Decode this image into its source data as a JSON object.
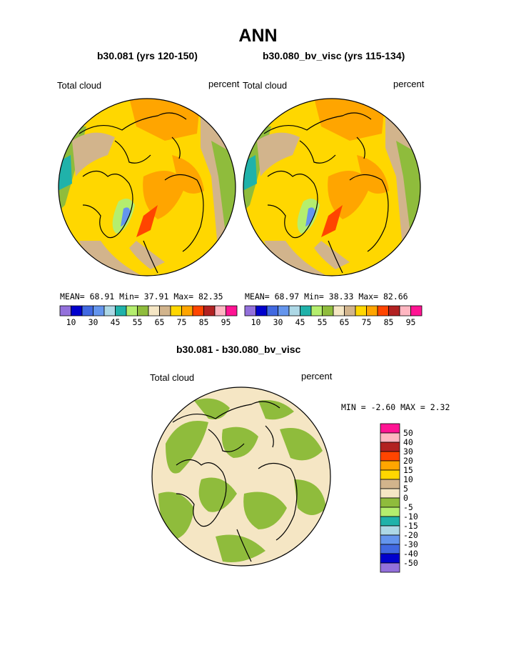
{
  "title": "ANN",
  "panels": [
    {
      "case": "b30.081 (yrs 120-150)",
      "variable": "Total cloud",
      "units": "percent",
      "stats": {
        "mean_label": "MEAN=",
        "mean": "68.91",
        "min_label": "Min=",
        "min": "37.91",
        "max_label": "Max=",
        "max": "82.35"
      }
    },
    {
      "case": "b30.080_bv_visc (yrs 115-134)",
      "variable": "Total cloud",
      "units": "percent",
      "stats": {
        "mean_label": "MEAN=",
        "mean": "68.97",
        "min_label": "Min=",
        "min": "38.33",
        "max_label": "Max=",
        "max": "82.66"
      }
    }
  ],
  "main_colorbar": {
    "colors": [
      "#9370db",
      "#0000cd",
      "#4169e1",
      "#6495ed",
      "#add8e6",
      "#20b2aa",
      "#b4ee6e",
      "#8fbc3c",
      "#f5e6c4",
      "#d2b48c",
      "#ffd700",
      "#ffa500",
      "#ff4500",
      "#b22222",
      "#ffb6c1",
      "#ff1493"
    ],
    "tick_labels": [
      "10",
      "30",
      "45",
      "55",
      "65",
      "75",
      "85",
      "95"
    ]
  },
  "diff": {
    "title": "b30.081 - b30.080_bv_visc",
    "variable": "Total cloud",
    "units": "percent",
    "stats": {
      "min_label": "MIN =",
      "min": "-2.60",
      "max_label": "MAX =",
      "max": "2.32"
    },
    "colorbar": {
      "colors": [
        "#ff1493",
        "#ffb6c1",
        "#b22222",
        "#ff4500",
        "#ffa500",
        "#ffd700",
        "#d2b48c",
        "#f5e6c4",
        "#8fbc3c",
        "#b4ee6e",
        "#20b2aa",
        "#add8e6",
        "#6495ed",
        "#4169e1",
        "#0000cd",
        "#9370db"
      ],
      "tick_labels": [
        "50",
        "40",
        "30",
        "20",
        "15",
        "10",
        "5",
        "0",
        "-5",
        "-10",
        "-15",
        "-20",
        "-30",
        "-40",
        "-50"
      ]
    }
  }
}
